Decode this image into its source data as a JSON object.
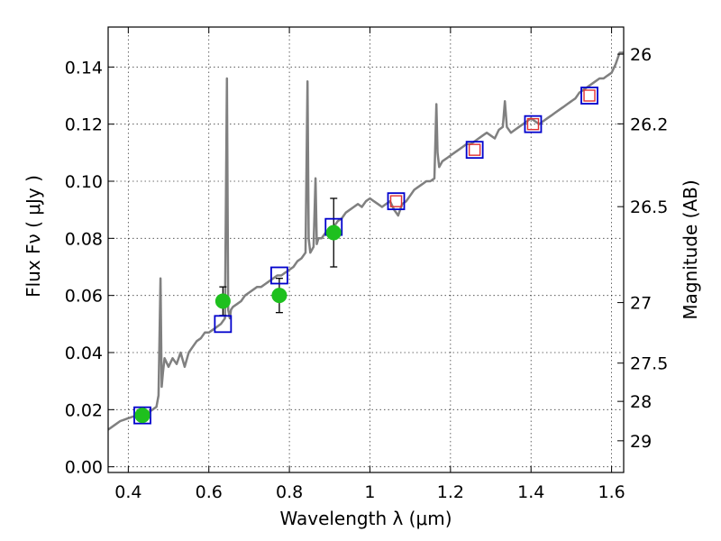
{
  "chart_data": {
    "type": "scatter",
    "xlabel": "Wavelength  λ (μm)",
    "ylabel": "Flux  Fν  ( μJy )",
    "y2label": "Magnitude (AB)",
    "xlim": [
      0.35,
      1.63
    ],
    "ylim": [
      -0.002,
      0.154
    ],
    "grid": true,
    "x_ticks": [
      0.4,
      0.6,
      0.8,
      1.0,
      1.2,
      1.4,
      1.6
    ],
    "x_tick_labels": [
      "0.4",
      "0.6",
      "0.8",
      "1",
      "1.2",
      "1.4",
      "1.6"
    ],
    "y_ticks": [
      0.0,
      0.02,
      0.04,
      0.06,
      0.08,
      0.1,
      0.12,
      0.14
    ],
    "y_tick_labels": [
      "0.00",
      "0.02",
      "0.04",
      "0.06",
      "0.08",
      "0.10",
      "0.12",
      "0.14"
    ],
    "y2_ticks": [
      {
        "label": "26",
        "flux": 0.1445
      },
      {
        "label": "26.2",
        "flux": 0.1201
      },
      {
        "label": "26.5",
        "flux": 0.0911
      },
      {
        "label": "27",
        "flux": 0.0575
      },
      {
        "label": "27.5",
        "flux": 0.0363
      },
      {
        "label": "28",
        "flux": 0.0229
      },
      {
        "label": "29",
        "flux": 0.0091
      }
    ],
    "series": [
      {
        "role": "model-spectrum",
        "color": "#808080",
        "x": [
          0.35,
          0.36,
          0.37,
          0.38,
          0.39,
          0.4,
          0.41,
          0.42,
          0.43,
          0.44,
          0.45,
          0.46,
          0.47,
          0.475,
          0.48,
          0.483,
          0.486,
          0.49,
          0.5,
          0.51,
          0.52,
          0.53,
          0.54,
          0.55,
          0.56,
          0.57,
          0.58,
          0.59,
          0.6,
          0.61,
          0.62,
          0.63,
          0.64,
          0.645,
          0.648,
          0.652,
          0.655,
          0.66,
          0.67,
          0.68,
          0.69,
          0.7,
          0.71,
          0.72,
          0.73,
          0.74,
          0.75,
          0.76,
          0.77,
          0.78,
          0.79,
          0.8,
          0.81,
          0.82,
          0.83,
          0.84,
          0.845,
          0.848,
          0.852,
          0.86,
          0.865,
          0.868,
          0.872,
          0.88,
          0.89,
          0.9,
          0.91,
          0.92,
          0.93,
          0.94,
          0.95,
          0.96,
          0.97,
          0.98,
          0.99,
          1.0,
          1.01,
          1.02,
          1.03,
          1.04,
          1.05,
          1.06,
          1.07,
          1.08,
          1.09,
          1.1,
          1.11,
          1.12,
          1.13,
          1.14,
          1.15,
          1.16,
          1.165,
          1.168,
          1.172,
          1.18,
          1.19,
          1.2,
          1.21,
          1.22,
          1.23,
          1.24,
          1.25,
          1.26,
          1.27,
          1.28,
          1.29,
          1.3,
          1.31,
          1.32,
          1.33,
          1.335,
          1.34,
          1.35,
          1.36,
          1.37,
          1.38,
          1.39,
          1.4,
          1.41,
          1.42,
          1.43,
          1.44,
          1.45,
          1.46,
          1.47,
          1.48,
          1.49,
          1.5,
          1.51,
          1.52,
          1.53,
          1.54,
          1.55,
          1.56,
          1.57,
          1.58,
          1.59,
          1.6,
          1.61,
          1.62,
          1.63
        ],
        "y": [
          0.013,
          0.014,
          0.015,
          0.016,
          0.0165,
          0.017,
          0.0175,
          0.018,
          0.018,
          0.019,
          0.019,
          0.02,
          0.021,
          0.025,
          0.066,
          0.028,
          0.033,
          0.038,
          0.035,
          0.038,
          0.036,
          0.04,
          0.035,
          0.04,
          0.042,
          0.044,
          0.045,
          0.047,
          0.047,
          0.048,
          0.049,
          0.05,
          0.052,
          0.136,
          0.055,
          0.052,
          0.055,
          0.056,
          0.057,
          0.058,
          0.06,
          0.061,
          0.062,
          0.063,
          0.063,
          0.064,
          0.065,
          0.066,
          0.067,
          0.067,
          0.068,
          0.069,
          0.07,
          0.072,
          0.073,
          0.075,
          0.135,
          0.08,
          0.075,
          0.077,
          0.101,
          0.078,
          0.08,
          0.08,
          0.082,
          0.083,
          0.084,
          0.086,
          0.087,
          0.089,
          0.09,
          0.091,
          0.092,
          0.091,
          0.093,
          0.094,
          0.093,
          0.092,
          0.091,
          0.092,
          0.093,
          0.09,
          0.088,
          0.092,
          0.093,
          0.095,
          0.097,
          0.098,
          0.099,
          0.1,
          0.1,
          0.101,
          0.127,
          0.11,
          0.105,
          0.107,
          0.108,
          0.109,
          0.11,
          0.111,
          0.112,
          0.113,
          0.113,
          0.114,
          0.115,
          0.116,
          0.117,
          0.116,
          0.115,
          0.118,
          0.119,
          0.128,
          0.119,
          0.117,
          0.118,
          0.119,
          0.12,
          0.121,
          0.122,
          0.121,
          0.12,
          0.121,
          0.122,
          0.123,
          0.124,
          0.125,
          0.126,
          0.127,
          0.128,
          0.129,
          0.131,
          0.132,
          0.133,
          0.134,
          0.135,
          0.136,
          0.136,
          0.137,
          0.138,
          0.141,
          0.145,
          0.145
        ]
      },
      {
        "role": "observed-points",
        "marker": "circle",
        "color": "#1ec01e",
        "x": [
          0.435,
          0.635,
          0.775,
          0.91
        ],
        "y": [
          0.018,
          0.058,
          0.06,
          0.082
        ],
        "yerr": [
          0.0005,
          0.005,
          0.006,
          0.012
        ]
      },
      {
        "role": "model-photometry-blue",
        "marker": "square-open",
        "color": "#0000cc",
        "x": [
          0.435,
          0.635,
          0.775,
          0.91,
          1.065,
          1.26,
          1.405,
          1.545
        ],
        "y": [
          0.018,
          0.05,
          0.067,
          0.084,
          0.093,
          0.111,
          0.12,
          0.13
        ]
      },
      {
        "role": "model-photometry-red",
        "marker": "square-open",
        "color": "#e03030",
        "x": [
          1.065,
          1.26,
          1.405,
          1.545
        ],
        "y": [
          0.093,
          0.111,
          0.12,
          0.13
        ]
      }
    ]
  }
}
